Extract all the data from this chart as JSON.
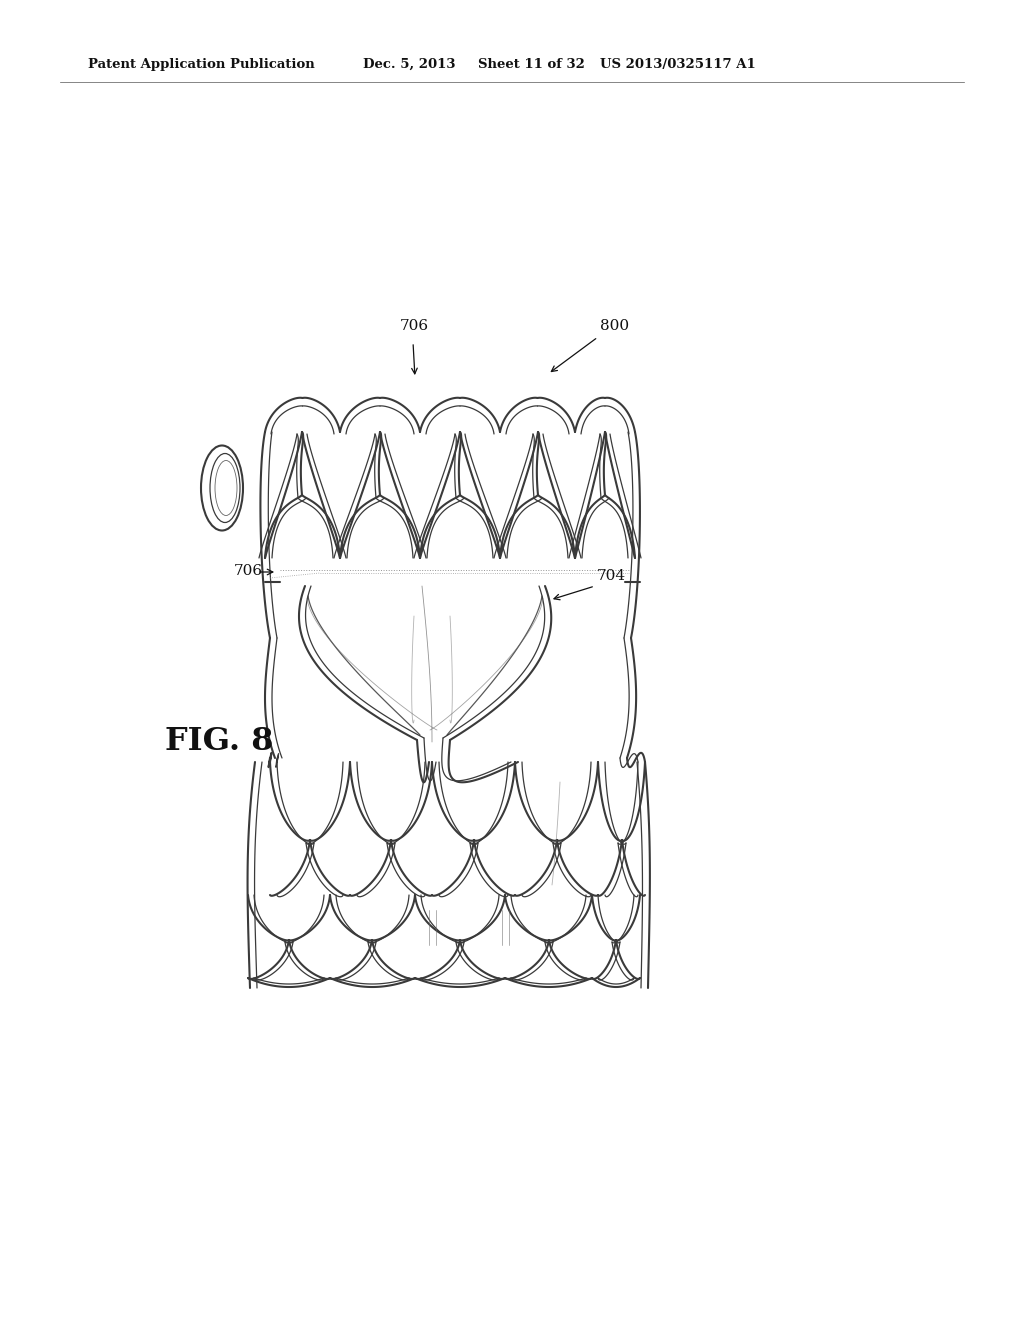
{
  "background_color": "#ffffff",
  "header_line1": "Patent Application Publication",
  "header_line2": "Dec. 5, 2013",
  "header_line3": "Sheet 11 of 32",
  "header_line4": "US 2013/0325117 A1",
  "fig_label": "FIG. 8",
  "label_800": "800",
  "label_706_top": "706",
  "label_706_left": "706",
  "label_704": "704",
  "stent_color": "#3a3a3a",
  "stent_color2": "#666666"
}
